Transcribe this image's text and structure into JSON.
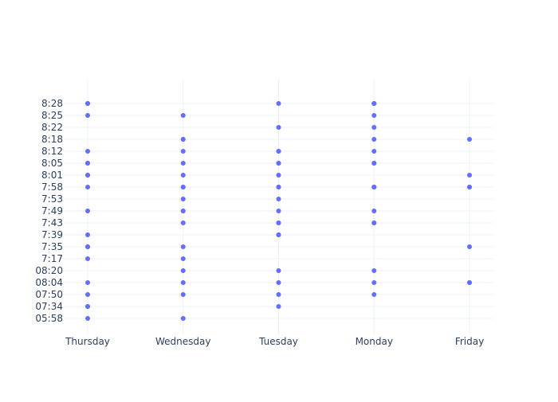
{
  "chart_data": {
    "type": "scatter",
    "title": "",
    "xlabel": "",
    "ylabel": "",
    "grid": true,
    "marker_color": "#636efa",
    "gridline_color": "#ebf0f8",
    "text_color": "#2a3f5f",
    "categories": [
      "Thursday",
      "Wednesday",
      "Tuesday",
      "Monday",
      "Friday"
    ],
    "y_categories": [
      "05:58",
      "07:34",
      "07:50",
      "08:04",
      "08:20",
      "7:17",
      "7:35",
      "7:39",
      "7:43",
      "7:49",
      "7:53",
      "7:58",
      "8:01",
      "8:05",
      "8:12",
      "8:18",
      "8:22",
      "8:25",
      "8:28"
    ],
    "points": {
      "Thursday": [
        "05:58",
        "07:34",
        "07:34",
        "07:50",
        "08:04",
        "7:17",
        "7:35",
        "7:35",
        "7:39",
        "7:49",
        "7:58",
        "8:01",
        "8:01",
        "8:05",
        "8:05",
        "8:12",
        "8:25",
        "8:28",
        "8:28"
      ],
      "Wednesday": [
        "05:58",
        "07:50",
        "08:04",
        "08:20",
        "7:17",
        "7:35",
        "7:43",
        "7:49",
        "7:49",
        "7:53",
        "7:58",
        "7:58",
        "8:01",
        "8:05",
        "8:12",
        "8:18",
        "8:18",
        "8:25"
      ],
      "Tuesday": [
        "07:34",
        "07:50",
        "08:04",
        "08:20",
        "7:39",
        "7:39",
        "7:43",
        "7:43",
        "7:49",
        "7:53",
        "7:58",
        "7:58",
        "8:01",
        "8:05",
        "8:05",
        "8:12",
        "8:12",
        "8:22",
        "8:28"
      ],
      "Monday": [
        "07:50",
        "08:04",
        "08:20",
        "7:43",
        "7:43",
        "7:49",
        "7:58",
        "7:58",
        "7:58",
        "8:05",
        "8:05",
        "8:12",
        "8:18",
        "8:22",
        "8:25",
        "8:28",
        "8:28",
        "8:28"
      ],
      "Friday": [
        "08:04",
        "08:04",
        "7:35",
        "7:58",
        "7:58",
        "8:01",
        "8:18"
      ]
    }
  }
}
